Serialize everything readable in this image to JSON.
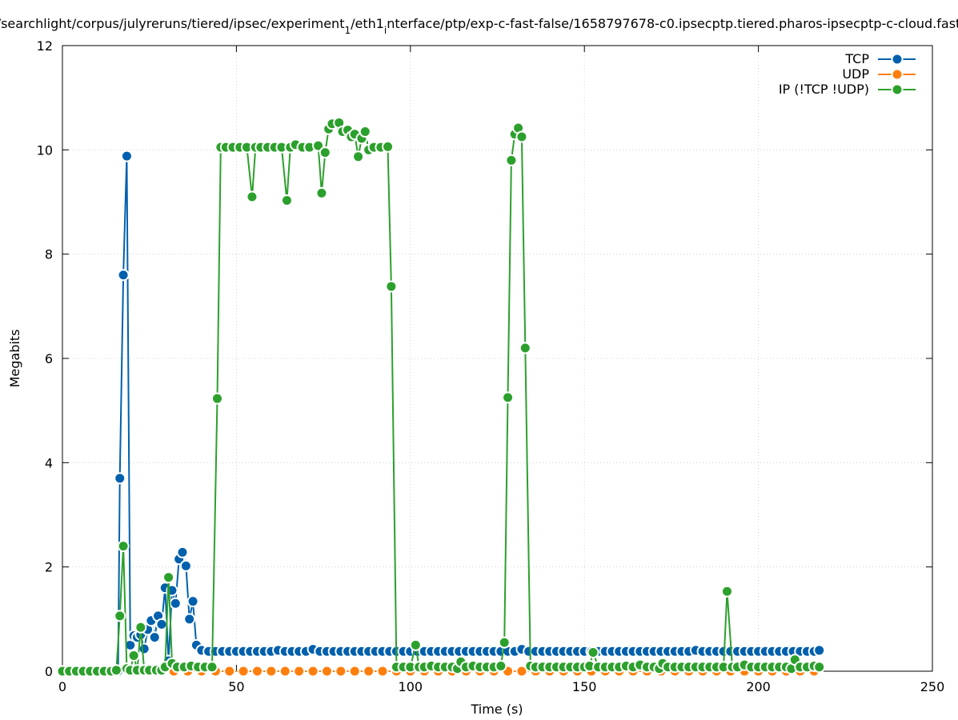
{
  "chart_data": {
    "type": "line",
    "title": "/searchlight/corpus/julyreruns/tiered/ipsec/experiment_1/eth1_interface/ptp/exp-c-fast-false/1658797678-c0.ipsecptp.tiered.pharos-ipsecptp-c-cloud.fast",
    "xlabel": "Time (s)",
    "ylabel": "Megabits",
    "xlim": [
      0,
      250
    ],
    "ylim": [
      0,
      12
    ],
    "xticks": [
      0,
      50,
      100,
      150,
      200,
      250
    ],
    "yticks": [
      0,
      2,
      4,
      6,
      8,
      10,
      12
    ],
    "grid": true,
    "legend_position": "top-right",
    "series": [
      {
        "name": "TCP",
        "color": "#0060ad",
        "points": [
          [
            0,
            0
          ],
          [
            2,
            0
          ],
          [
            4,
            0
          ],
          [
            6,
            0
          ],
          [
            8,
            0
          ],
          [
            10,
            0
          ],
          [
            12,
            0.02
          ],
          [
            14,
            0
          ],
          [
            16,
            0
          ],
          [
            16.5,
            3.7
          ],
          [
            17.5,
            7.6
          ],
          [
            18.5,
            9.88
          ],
          [
            19.5,
            0.5
          ],
          [
            20.5,
            0.68
          ],
          [
            21.5,
            0.65
          ],
          [
            22.5,
            0.7
          ],
          [
            23.5,
            0.43
          ],
          [
            24.5,
            0.8
          ],
          [
            25.5,
            0.97
          ],
          [
            26.5,
            0.65
          ],
          [
            27.5,
            1.06
          ],
          [
            28.5,
            0.9
          ],
          [
            29.5,
            1.6
          ],
          [
            30.5,
            0.2
          ],
          [
            31.5,
            1.55
          ],
          [
            32.5,
            1.3
          ],
          [
            33.5,
            2.15
          ],
          [
            34.5,
            2.28
          ],
          [
            35.5,
            2.02
          ],
          [
            36.5,
            1.0
          ],
          [
            37.5,
            1.34
          ],
          [
            38.5,
            0.5
          ],
          [
            40,
            0.4
          ],
          [
            42,
            0.38
          ],
          [
            44,
            0.38
          ],
          [
            46,
            0.38
          ],
          [
            48,
            0.38
          ],
          [
            50,
            0.38
          ],
          [
            52,
            0.38
          ],
          [
            54,
            0.38
          ],
          [
            56,
            0.38
          ],
          [
            58,
            0.38
          ],
          [
            60,
            0.38
          ],
          [
            62,
            0.4
          ],
          [
            64,
            0.38
          ],
          [
            66,
            0.38
          ],
          [
            68,
            0.38
          ],
          [
            70,
            0.38
          ],
          [
            72,
            0.42
          ],
          [
            74,
            0.38
          ],
          [
            76,
            0.38
          ],
          [
            78,
            0.38
          ],
          [
            80,
            0.38
          ],
          [
            82,
            0.38
          ],
          [
            84,
            0.38
          ],
          [
            86,
            0.38
          ],
          [
            88,
            0.38
          ],
          [
            90,
            0.38
          ],
          [
            92,
            0.38
          ],
          [
            94,
            0.38
          ],
          [
            96,
            0.38
          ],
          [
            98,
            0.38
          ],
          [
            100,
            0.38
          ],
          [
            102,
            0.38
          ],
          [
            104,
            0.38
          ],
          [
            106,
            0.38
          ],
          [
            108,
            0.38
          ],
          [
            110,
            0.38
          ],
          [
            112,
            0.38
          ],
          [
            114,
            0.38
          ],
          [
            116,
            0.38
          ],
          [
            118,
            0.38
          ],
          [
            120,
            0.38
          ],
          [
            122,
            0.38
          ],
          [
            124,
            0.38
          ],
          [
            126,
            0.38
          ],
          [
            128,
            0.38
          ],
          [
            130,
            0.38
          ],
          [
            132,
            0.42
          ],
          [
            134,
            0.38
          ],
          [
            136,
            0.38
          ],
          [
            138,
            0.38
          ],
          [
            140,
            0.38
          ],
          [
            142,
            0.38
          ],
          [
            144,
            0.38
          ],
          [
            146,
            0.38
          ],
          [
            148,
            0.38
          ],
          [
            150,
            0.38
          ],
          [
            152,
            0.38
          ],
          [
            154,
            0.38
          ],
          [
            156,
            0.38
          ],
          [
            158,
            0.38
          ],
          [
            160,
            0.38
          ],
          [
            162,
            0.38
          ],
          [
            164,
            0.38
          ],
          [
            166,
            0.38
          ],
          [
            168,
            0.38
          ],
          [
            170,
            0.38
          ],
          [
            172,
            0.38
          ],
          [
            174,
            0.38
          ],
          [
            176,
            0.38
          ],
          [
            178,
            0.38
          ],
          [
            180,
            0.38
          ],
          [
            182,
            0.4
          ],
          [
            184,
            0.38
          ],
          [
            186,
            0.38
          ],
          [
            188,
            0.38
          ],
          [
            190,
            0.38
          ],
          [
            192,
            0.38
          ],
          [
            194,
            0.38
          ],
          [
            196,
            0.38
          ],
          [
            198,
            0.38
          ],
          [
            200,
            0.38
          ],
          [
            202,
            0.38
          ],
          [
            204,
            0.38
          ],
          [
            206,
            0.38
          ],
          [
            208,
            0.38
          ],
          [
            210,
            0.38
          ],
          [
            212,
            0.38
          ],
          [
            214,
            0.38
          ],
          [
            216,
            0.38
          ],
          [
            217.5,
            0.4
          ]
        ]
      },
      {
        "name": "UDP",
        "color": "#ff7f0e",
        "points": [
          [
            0,
            0
          ],
          [
            4,
            0
          ],
          [
            8,
            0
          ],
          [
            12,
            0
          ],
          [
            16,
            0
          ],
          [
            20,
            0
          ],
          [
            24,
            0
          ],
          [
            28,
            0
          ],
          [
            32,
            0
          ],
          [
            36,
            0
          ],
          [
            40,
            0
          ],
          [
            44,
            0
          ],
          [
            48,
            0
          ],
          [
            52,
            0
          ],
          [
            56,
            0
          ],
          [
            60,
            0
          ],
          [
            64,
            0
          ],
          [
            68,
            0
          ],
          [
            72,
            0
          ],
          [
            76,
            0
          ],
          [
            80,
            0
          ],
          [
            84,
            0
          ],
          [
            88,
            0
          ],
          [
            92,
            0
          ],
          [
            96,
            0
          ],
          [
            100,
            0
          ],
          [
            104,
            0
          ],
          [
            108,
            0
          ],
          [
            112,
            0
          ],
          [
            116,
            0
          ],
          [
            120,
            0
          ],
          [
            124,
            0
          ],
          [
            128,
            0
          ],
          [
            132,
            0
          ],
          [
            136,
            0
          ],
          [
            140,
            0
          ],
          [
            144,
            0
          ],
          [
            148,
            0
          ],
          [
            152,
            0
          ],
          [
            156,
            0
          ],
          [
            160,
            0
          ],
          [
            164,
            0
          ],
          [
            168,
            0
          ],
          [
            172,
            0
          ],
          [
            176,
            0
          ],
          [
            180,
            0
          ],
          [
            184,
            0
          ],
          [
            188,
            0
          ],
          [
            192,
            0
          ],
          [
            196,
            0
          ],
          [
            200,
            0
          ],
          [
            204,
            0
          ],
          [
            208,
            0
          ],
          [
            212,
            0
          ],
          [
            216,
            0
          ]
        ]
      },
      {
        "name": "IP (!TCP  !UDP)",
        "color": "#2ca02c",
        "points": [
          [
            0,
            0
          ],
          [
            2,
            0
          ],
          [
            4,
            0
          ],
          [
            6,
            0
          ],
          [
            8,
            0
          ],
          [
            10,
            0
          ],
          [
            12,
            0
          ],
          [
            14,
            0
          ],
          [
            15.5,
            0.02
          ],
          [
            16.5,
            1.06
          ],
          [
            17.5,
            2.4
          ],
          [
            18.5,
            0.05
          ],
          [
            19.5,
            0.02
          ],
          [
            20.5,
            0.3
          ],
          [
            21.5,
            0.02
          ],
          [
            22.5,
            0.84
          ],
          [
            23.5,
            0.02
          ],
          [
            25,
            0.02
          ],
          [
            27,
            0.02
          ],
          [
            28.5,
            0.02
          ],
          [
            29.5,
            0.08
          ],
          [
            30.5,
            1.8
          ],
          [
            31.5,
            0.15
          ],
          [
            33,
            0.08
          ],
          [
            35,
            0.08
          ],
          [
            37,
            0.1
          ],
          [
            39,
            0.08
          ],
          [
            41,
            0.08
          ],
          [
            43,
            0.08
          ],
          [
            44.5,
            5.23
          ],
          [
            45.5,
            10.05
          ],
          [
            47,
            10.05
          ],
          [
            49,
            10.05
          ],
          [
            51,
            10.05
          ],
          [
            53,
            10.05
          ],
          [
            54.5,
            9.1
          ],
          [
            55.5,
            10.05
          ],
          [
            57,
            10.05
          ],
          [
            59,
            10.05
          ],
          [
            61,
            10.05
          ],
          [
            63,
            10.05
          ],
          [
            64.5,
            9.03
          ],
          [
            65.5,
            10.05
          ],
          [
            67,
            10.1
          ],
          [
            69,
            10.05
          ],
          [
            71,
            10.05
          ],
          [
            73.5,
            10.08
          ],
          [
            74.5,
            9.17
          ],
          [
            75.5,
            9.95
          ],
          [
            76.5,
            10.4
          ],
          [
            77.5,
            10.5
          ],
          [
            79.5,
            10.52
          ],
          [
            80.5,
            10.35
          ],
          [
            82,
            10.38
          ],
          [
            83,
            10.25
          ],
          [
            84,
            10.3
          ],
          [
            85,
            9.87
          ],
          [
            86,
            10.22
          ],
          [
            87,
            10.35
          ],
          [
            88,
            10.0
          ],
          [
            89.5,
            10.05
          ],
          [
            91.5,
            10.05
          ],
          [
            93.5,
            10.06
          ],
          [
            94.5,
            7.38
          ],
          [
            96,
            0.08
          ],
          [
            98,
            0.08
          ],
          [
            100,
            0.08
          ],
          [
            101.5,
            0.5
          ],
          [
            102.5,
            0.08
          ],
          [
            104,
            0.08
          ],
          [
            106,
            0.1
          ],
          [
            108,
            0.08
          ],
          [
            110,
            0.08
          ],
          [
            112,
            0.08
          ],
          [
            113.5,
            0.05
          ],
          [
            114.5,
            0.18
          ],
          [
            116,
            0.08
          ],
          [
            118,
            0.1
          ],
          [
            120,
            0.08
          ],
          [
            122,
            0.08
          ],
          [
            124,
            0.08
          ],
          [
            126,
            0.1
          ],
          [
            127,
            0.55
          ],
          [
            128,
            5.25
          ],
          [
            129,
            9.8
          ],
          [
            130,
            10.3
          ],
          [
            131,
            10.42
          ],
          [
            132,
            10.25
          ],
          [
            133,
            6.2
          ],
          [
            134.5,
            0.1
          ],
          [
            136,
            0.08
          ],
          [
            138,
            0.08
          ],
          [
            140,
            0.08
          ],
          [
            142,
            0.08
          ],
          [
            144,
            0.08
          ],
          [
            146,
            0.08
          ],
          [
            148,
            0.08
          ],
          [
            150,
            0.08
          ],
          [
            151.5,
            0.1
          ],
          [
            152.5,
            0.36
          ],
          [
            154,
            0.08
          ],
          [
            156,
            0.08
          ],
          [
            158,
            0.08
          ],
          [
            160,
            0.08
          ],
          [
            162,
            0.1
          ],
          [
            164,
            0.08
          ],
          [
            166,
            0.12
          ],
          [
            168,
            0.08
          ],
          [
            170,
            0.08
          ],
          [
            171.5,
            0.05
          ],
          [
            172.5,
            0.15
          ],
          [
            174,
            0.08
          ],
          [
            176,
            0.08
          ],
          [
            178,
            0.08
          ],
          [
            180,
            0.08
          ],
          [
            182,
            0.08
          ],
          [
            184,
            0.08
          ],
          [
            186,
            0.08
          ],
          [
            188,
            0.08
          ],
          [
            190,
            0.08
          ],
          [
            191,
            1.53
          ],
          [
            192.5,
            0.08
          ],
          [
            194,
            0.08
          ],
          [
            196,
            0.12
          ],
          [
            198,
            0.08
          ],
          [
            200,
            0.08
          ],
          [
            202,
            0.08
          ],
          [
            204,
            0.08
          ],
          [
            206,
            0.08
          ],
          [
            208,
            0.08
          ],
          [
            209.5,
            0.05
          ],
          [
            210.5,
            0.22
          ],
          [
            212,
            0.08
          ],
          [
            214,
            0.08
          ],
          [
            216,
            0.1
          ],
          [
            217.5,
            0.08
          ]
        ]
      }
    ]
  }
}
